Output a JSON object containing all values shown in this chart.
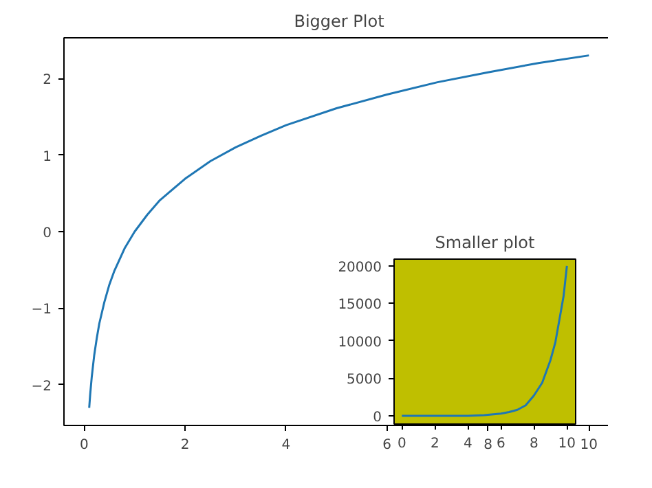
{
  "chart_data": [
    {
      "type": "line",
      "title": "Bigger Plot",
      "x": [
        0.1,
        0.12,
        0.15,
        0.2,
        0.25,
        0.3,
        0.4,
        0.5,
        0.6,
        0.8,
        1,
        1.25,
        1.5,
        2,
        2.5,
        3,
        3.5,
        4,
        5,
        6,
        7,
        8,
        9,
        10
      ],
      "series": [
        {
          "color": "#1f77b4",
          "values": [
            -2.3,
            -2.12,
            -1.9,
            -1.61,
            -1.39,
            -1.2,
            -0.92,
            -0.69,
            -0.51,
            -0.22,
            0,
            0.22,
            0.41,
            0.69,
            0.92,
            1.1,
            1.25,
            1.39,
            1.61,
            1.79,
            1.95,
            2.08,
            2.2,
            2.3
          ]
        }
      ],
      "xlim": [
        -0.4,
        10.5
      ],
      "ylim": [
        -2.53,
        2.53
      ],
      "xticks": [
        0,
        2,
        4,
        6,
        8,
        10
      ],
      "yticks": [
        {
          "value": -2,
          "label": "−2"
        },
        {
          "value": -1,
          "label": "−1"
        },
        0,
        1,
        2
      ]
    },
    {
      "type": "line",
      "title": "Smaller plot",
      "x": [
        0,
        1,
        2,
        3,
        4,
        5,
        6,
        6.5,
        7,
        7.5,
        8,
        8.5,
        9,
        9.3,
        9.6,
        9.8,
        10
      ],
      "series": [
        {
          "color": "#1f77b4",
          "values": [
            0,
            0,
            0,
            0,
            0,
            100,
            300,
            500,
            800,
            1400,
            2700,
            4400,
            7400,
            9800,
            13500,
            16000,
            20000
          ]
        }
      ],
      "xlim": [
        -0.47,
        10.53
      ],
      "ylim": [
        -1100,
        20900
      ],
      "xticks": [
        0,
        2,
        4,
        6,
        8,
        10
      ],
      "yticks": [
        0,
        5000,
        10000,
        15000,
        20000
      ]
    }
  ]
}
